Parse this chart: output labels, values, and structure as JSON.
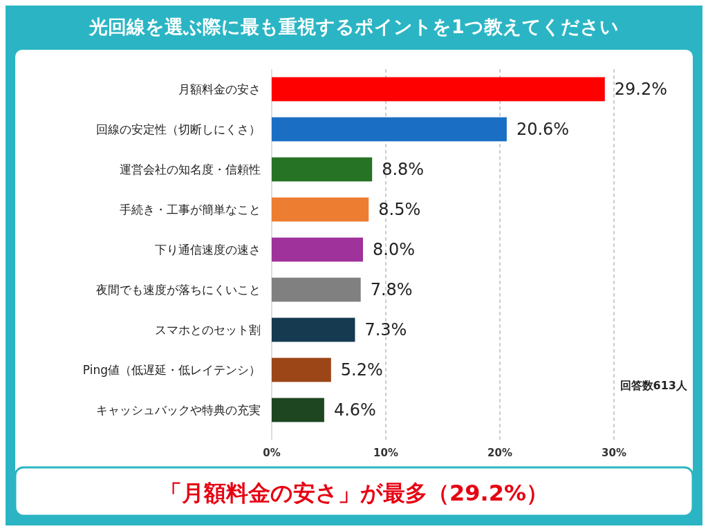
{
  "chart_data": {
    "type": "bar",
    "orientation": "horizontal",
    "title": "光回線を選ぶ際に最も重視するポイントを1つ教えてください",
    "categories": [
      "月額料金の安さ",
      "回線の安定性（切断しにくさ）",
      "運営会社の知名度・信頼性",
      "手続き・工事が簡単なこと",
      "下り通信速度の速さ",
      "夜間でも速度が落ちにくいこと",
      "スマホとのセット割",
      "Ping値（低遅延・低レイテンシ）",
      "キャッシュバックや特典の充実"
    ],
    "values": [
      29.2,
      20.6,
      8.8,
      8.5,
      8.0,
      7.8,
      7.3,
      5.2,
      4.6
    ],
    "colors": [
      "#ff0000",
      "#1a6fc4",
      "#267326",
      "#ed7d31",
      "#a0329c",
      "#808080",
      "#163a50",
      "#9c4517",
      "#1e4620"
    ],
    "value_labels": [
      "29.2%",
      "20.6%",
      "8.8%",
      "8.5%",
      "8.0%",
      "7.8%",
      "7.3%",
      "5.2%",
      "4.6%"
    ],
    "xlim": [
      0,
      30
    ],
    "xticks": [
      {
        "value": 0,
        "label": "0%"
      },
      {
        "value": 10,
        "label": "10%"
      },
      {
        "value": 20,
        "label": "20%"
      },
      {
        "value": 30,
        "label": "30%"
      }
    ],
    "grid": "x",
    "annotations": [
      "回答数613人",
      "「月額料金の安さ」が最多（29.2%）"
    ]
  }
}
